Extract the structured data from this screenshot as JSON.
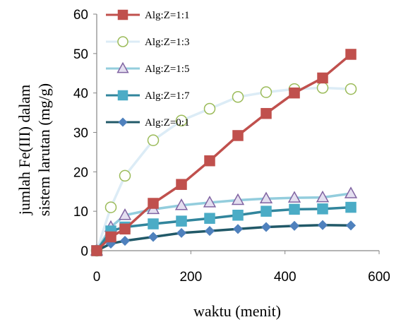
{
  "chart_data": {
    "type": "line",
    "xlabel": "waktu (menit)",
    "ylabel_lines": [
      "jumlah Fe(III) dalam",
      "sistem larutan (mg/g)"
    ],
    "xlim": [
      0,
      600
    ],
    "ylim": [
      0,
      60
    ],
    "xticks": [
      "0",
      "200",
      "400",
      "600"
    ],
    "yticks": [
      "0",
      "10",
      "20",
      "30",
      "40",
      "50",
      "60"
    ],
    "grid": false,
    "legend_position": "top-left",
    "series": [
      {
        "name": "Alg:Z=1:1",
        "marker": "square",
        "color": "#c0504d",
        "marker_fill": "#c0504d",
        "marker_stroke": "#c0504d",
        "x": [
          0,
          30,
          60,
          120,
          180,
          240,
          300,
          360,
          420,
          480,
          540
        ],
        "y": [
          0,
          3.5,
          5.5,
          12,
          16.8,
          22.8,
          29.2,
          34.8,
          40,
          43.8,
          49.8
        ]
      },
      {
        "name": "Alg:Z=1:3",
        "marker": "circle",
        "color": "#dcecf6",
        "marker_fill": "#ffffff",
        "marker_stroke": "#9bbb59",
        "x": [
          0,
          30,
          60,
          120,
          180,
          240,
          300,
          360,
          420,
          480,
          540
        ],
        "y": [
          0,
          11,
          19,
          28,
          33,
          36,
          39,
          40.2,
          41,
          41.3,
          41
        ]
      },
      {
        "name": "Alg:Z=1:5",
        "marker": "triangle",
        "color": "#93cddd",
        "marker_fill": "#e4dff0",
        "marker_stroke": "#8064a2",
        "x": [
          0,
          30,
          60,
          120,
          180,
          240,
          300,
          360,
          420,
          480,
          540
        ],
        "y": [
          0,
          6,
          9,
          10.5,
          11.5,
          12.2,
          12.8,
          13.2,
          13.4,
          13.5,
          14.5
        ]
      },
      {
        "name": "Alg:Z=1:7",
        "marker": "square",
        "color": "#31859c",
        "marker_fill": "#4bacc6",
        "marker_stroke": "#4bacc6",
        "x": [
          0,
          30,
          60,
          120,
          180,
          240,
          300,
          360,
          420,
          480,
          540
        ],
        "y": [
          0,
          5,
          6,
          6.8,
          7.5,
          8.2,
          9,
          10,
          10.5,
          10.6,
          11
        ]
      },
      {
        "name": "Alg:Z=0:1",
        "marker": "diamond",
        "color": "#215968",
        "marker_fill": "#4f81bd",
        "marker_stroke": "#4f81bd",
        "x": [
          0,
          30,
          60,
          120,
          180,
          240,
          300,
          360,
          420,
          480,
          540
        ],
        "y": [
          0,
          1.8,
          2.5,
          3.5,
          4.5,
          5,
          5.5,
          6,
          6.3,
          6.5,
          6.4
        ]
      }
    ]
  }
}
